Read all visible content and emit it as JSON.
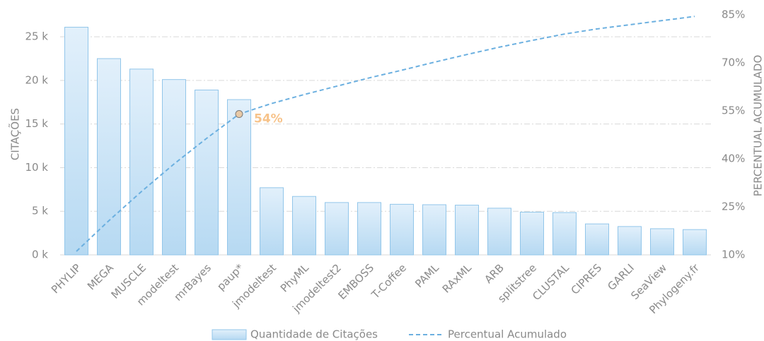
{
  "chart_data": {
    "type": "bar",
    "y_label": "CITAÇÕES",
    "y2_label": "PERCENTUAL ACUMULADO",
    "categories": [
      "PHYLIP",
      "MEGA",
      "MUSCLE",
      "modeltest",
      "mrBayes",
      "paup*",
      "jmodeltest",
      "PhyML",
      "jmodeltest2",
      "EMBOSS",
      "T-Coffee",
      "PAML",
      "RAxML",
      "ARB",
      "splitstree",
      "CLUSTAL",
      "CIPRES",
      "GARLI",
      "SeaView",
      "Phylogeny.fr"
    ],
    "series": [
      {
        "name": "Quantidade de Citações",
        "type": "bar",
        "color": "#c6e2f6",
        "edge_color": "#92c6ea",
        "values": [
          26100,
          22500,
          21300,
          20100,
          18900,
          17800,
          7700,
          6700,
          6000,
          6000,
          5800,
          5750,
          5700,
          5350,
          4900,
          4850,
          3550,
          3250,
          3000,
          2900
        ]
      },
      {
        "name": "Percentual Acumulado",
        "type": "line",
        "axis": "y2",
        "color": "#6cb0e0",
        "dashed": true,
        "values": [
          11.1,
          20.7,
          29.8,
          38.4,
          46.4,
          54.0,
          57.3,
          60.1,
          62.7,
          65.3,
          67.7,
          70.2,
          72.6,
          74.9,
          77.0,
          79.0,
          80.6,
          81.9,
          83.2,
          84.5
        ],
        "value_labels": [
          null,
          null,
          null,
          null,
          null,
          "54%",
          null,
          null,
          null,
          null,
          null,
          null,
          null,
          null,
          null,
          null,
          null,
          null,
          null,
          null
        ],
        "label_color": "#f7c38a"
      }
    ],
    "ylim": [
      0,
      27600
    ],
    "yticks": [
      {
        "value": 0,
        "label": "0 k"
      },
      {
        "value": 5000,
        "label": "5 k"
      },
      {
        "value": 10000,
        "label": "10 k"
      },
      {
        "value": 15000,
        "label": "15 k"
      },
      {
        "value": 20000,
        "label": "20 k"
      },
      {
        "value": 25000,
        "label": "25 k"
      }
    ],
    "y2lim": [
      10,
      85
    ],
    "y2ticks": [
      {
        "value": 10,
        "label": "10%"
      },
      {
        "value": 25,
        "label": "25%"
      },
      {
        "value": 40,
        "label": "40%"
      },
      {
        "value": 55,
        "label": "55%"
      },
      {
        "value": 70,
        "label": "70%"
      },
      {
        "value": 85,
        "label": "85%"
      }
    ],
    "grid": true,
    "legend": "bottom"
  }
}
